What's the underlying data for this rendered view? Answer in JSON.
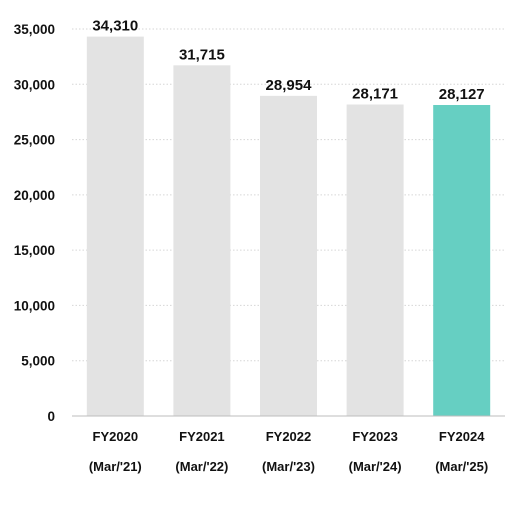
{
  "chart_data": {
    "type": "bar",
    "title": "",
    "xlabel": "",
    "ylabel": "",
    "categories": [
      "FY2020",
      "FY2021",
      "FY2022",
      "FY2023",
      "FY2024"
    ],
    "category_sublabels": [
      "(Mar/'21)",
      "(Mar/'22)",
      "(Mar/'23)",
      "(Mar/'24)",
      "(Mar/'25)"
    ],
    "values": [
      34310,
      31715,
      28954,
      28171,
      28127
    ],
    "data_labels": [
      "34,310",
      "31,715",
      "28,954",
      "28,171",
      "28,127"
    ],
    "ylim": [
      0,
      35000
    ],
    "yticks": [
      0,
      5000,
      10000,
      15000,
      20000,
      25000,
      30000,
      35000
    ],
    "ytick_labels": [
      "0",
      "5,000",
      "10,000",
      "15,000",
      "20,000",
      "25,000",
      "30,000",
      "35,000"
    ],
    "grid": true,
    "colors": {
      "default_bar": "#e3e3e3",
      "highlight_bar": "#66cfc2",
      "gridline": "#d6d6d6",
      "axis": "#bdbdbd"
    },
    "highlight_index": 4
  }
}
